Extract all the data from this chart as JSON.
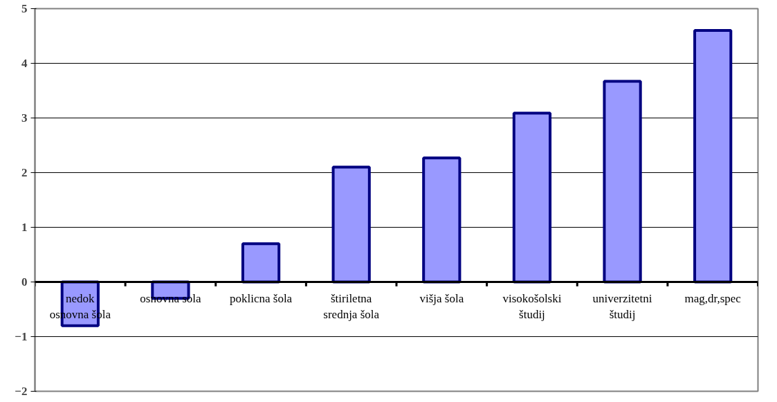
{
  "chart_data": {
    "type": "bar",
    "categories": [
      "nedok\nosnovna šola",
      "osnovna sola",
      "poklicna šola",
      "štiriletna\nsrednja šola",
      "višja šola",
      "visokošolski\nštudij",
      "univerzitetni\nštudij",
      "mag,dr,spec"
    ],
    "values": [
      -0.8,
      -0.3,
      0.7,
      2.1,
      2.27,
      3.09,
      3.67,
      4.6
    ],
    "color": "#9999ff",
    "ylim": [
      -2,
      5
    ],
    "yticks": [
      -2,
      -1,
      0,
      1,
      2,
      3,
      4,
      5
    ],
    "grid": "y"
  }
}
